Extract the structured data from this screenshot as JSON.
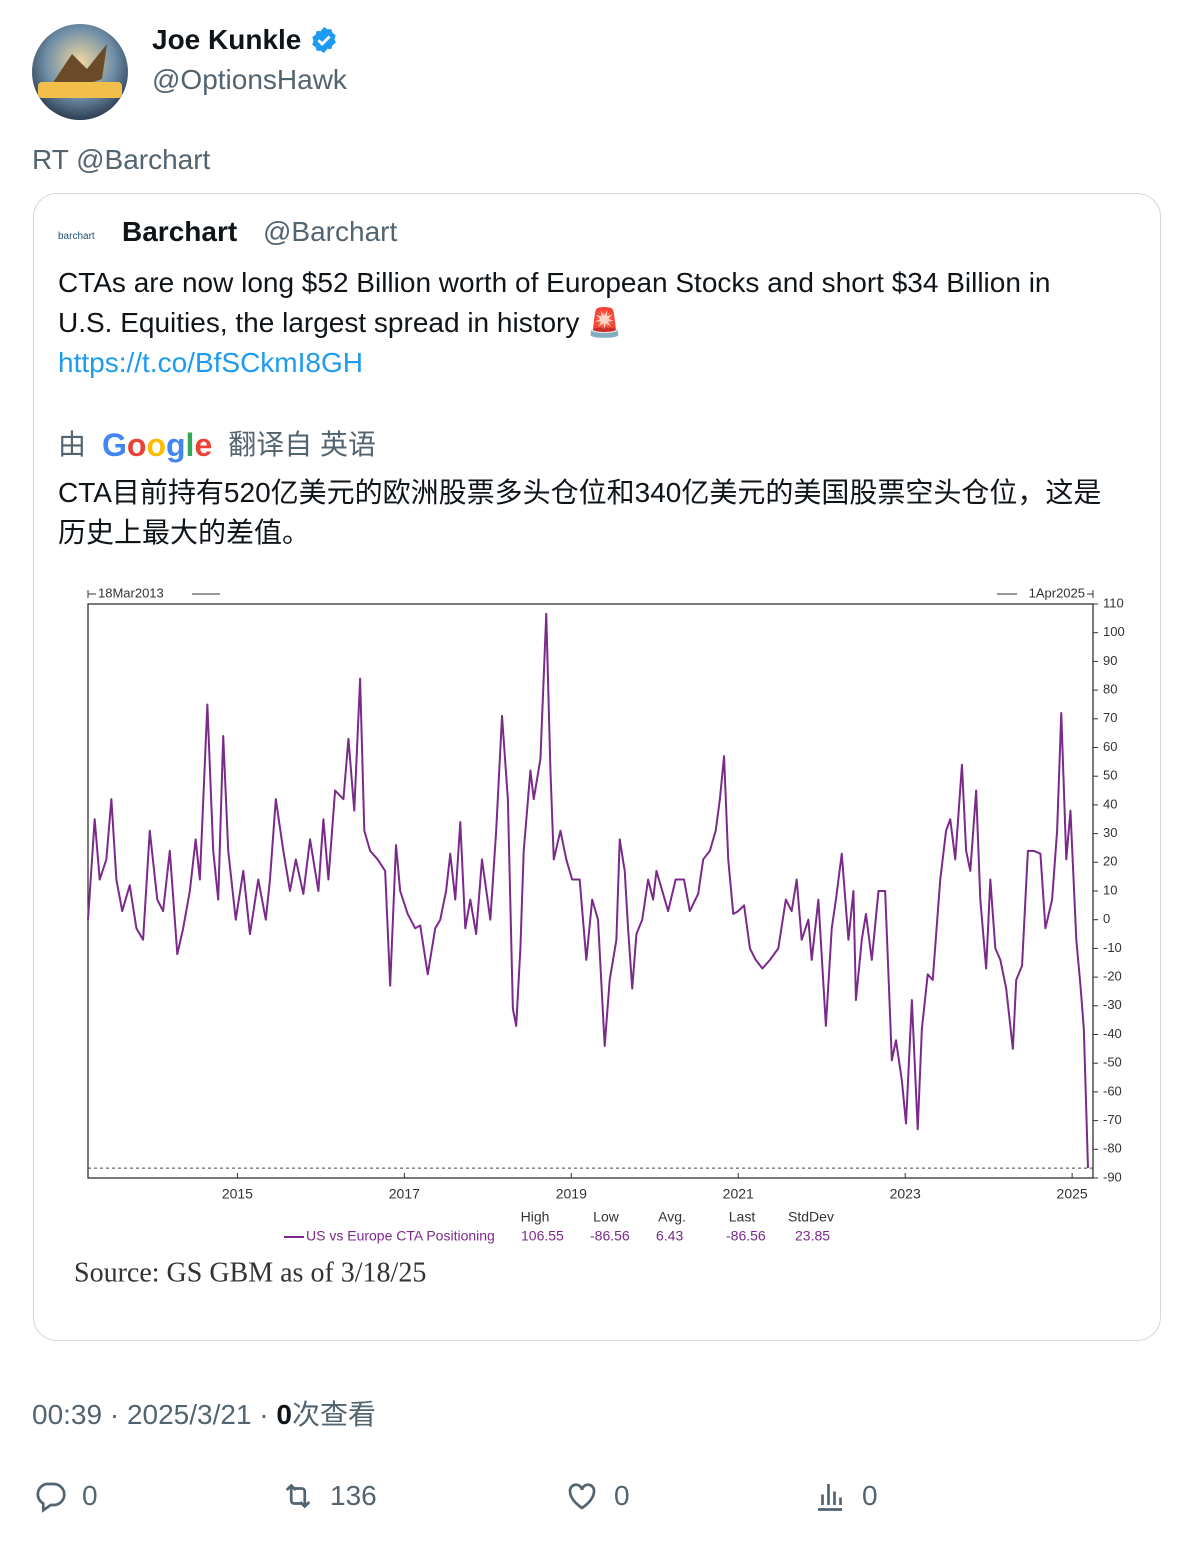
{
  "author": {
    "name": "Joe Kunkle",
    "handle": "@OptionsHawk"
  },
  "retweet_label": "RT @Barchart",
  "quoted": {
    "logo_text": "barchart",
    "name": "Barchart",
    "handle": "@Barchart",
    "text": "CTAs are now long $52 Billion worth of European Stocks and short $34 Billion in U.S. Equities, the largest spread in history 🚨",
    "link": "https://t.co/BfSCkmI8GH",
    "translation_prefix": "由",
    "translation_brand": "Google",
    "translation_suffix": "翻译自 英语",
    "translated_text": "CTA目前持有520亿美元的欧洲股票多头仓位和340亿美元的美国股票空头仓位，这是历史上最大的差值。",
    "chart_data": {
      "type": "line",
      "start_label": "18Mar2013",
      "end_label": "1Apr2025",
      "x": [
        2013.21,
        2013.29,
        2013.35,
        2013.43,
        2013.49,
        2013.55,
        2013.62,
        2013.71,
        2013.79,
        2013.87,
        2013.95,
        2014.04,
        2014.11,
        2014.19,
        2014.28,
        2014.35,
        2014.43,
        2014.5,
        2014.55,
        2014.64,
        2014.71,
        2014.77,
        2014.83,
        2014.89,
        2014.98,
        2015.07,
        2015.15,
        2015.25,
        2015.34,
        2015.39,
        2015.46,
        2015.55,
        2015.63,
        2015.7,
        2015.79,
        2015.87,
        2015.97,
        2016.03,
        2016.09,
        2016.17,
        2016.27,
        2016.33,
        2016.4,
        2016.47,
        2016.52,
        2016.59,
        2016.68,
        2016.77,
        2016.83,
        2016.9,
        2016.95,
        2017.04,
        2017.13,
        2017.19,
        2017.28,
        2017.37,
        2017.43,
        2017.5,
        2017.55,
        2017.61,
        2017.67,
        2017.73,
        2017.79,
        2017.86,
        2017.93,
        2018.03,
        2018.1,
        2018.17,
        2018.24,
        2018.3,
        2018.34,
        2018.39,
        2018.43,
        2018.51,
        2018.55,
        2018.63,
        2018.7,
        2018.75,
        2018.79,
        2018.87,
        2018.94,
        2019.01,
        2019.1,
        2019.18,
        2019.25,
        2019.32,
        2019.4,
        2019.46,
        2019.54,
        2019.58,
        2019.64,
        2019.68,
        2019.73,
        2019.78,
        2019.85,
        2019.92,
        2019.98,
        2020.02,
        2020.09,
        2020.16,
        2020.25,
        2020.35,
        2020.42,
        2020.52,
        2020.58,
        2020.66,
        2020.73,
        2020.78,
        2020.83,
        2020.88,
        2020.94,
        2021.0,
        2021.07,
        2021.14,
        2021.21,
        2021.29,
        2021.38,
        2021.48,
        2021.57,
        2021.64,
        2021.7,
        2021.76,
        2021.84,
        2021.88,
        2021.96,
        2022.05,
        2022.12,
        2022.17,
        2022.24,
        2022.32,
        2022.38,
        2022.41,
        2022.48,
        2022.53,
        2022.6,
        2022.68,
        2022.76,
        2022.84,
        2022.89,
        2022.96,
        2023.01,
        2023.08,
        2023.15,
        2023.2,
        2023.27,
        2023.33,
        2023.42,
        2023.49,
        2023.54,
        2023.6,
        2023.68,
        2023.73,
        2023.78,
        2023.85,
        2023.9,
        2023.97,
        2024.02,
        2024.08,
        2024.14,
        2024.21,
        2024.29,
        2024.33,
        2024.4,
        2024.47,
        2024.54,
        2024.62,
        2024.68,
        2024.76,
        2024.82,
        2024.87,
        2024.93,
        2024.98,
        2025.05,
        2025.1,
        2025.14,
        2025.19
      ],
      "series": [
        {
          "name": "US vs Europe CTA Positioning",
          "color": "#7b2a8a",
          "values": [
            0,
            35,
            14,
            21,
            42,
            14,
            3,
            12,
            -3,
            -7,
            31,
            7,
            3,
            24,
            -12,
            -3,
            10,
            28,
            14,
            75,
            24,
            7,
            64,
            24,
            0,
            17,
            -5,
            14,
            0,
            14,
            42,
            24,
            10,
            21,
            9,
            28,
            10,
            35,
            14,
            45,
            42,
            63,
            38,
            84,
            31,
            24,
            21,
            17,
            -23,
            26,
            10,
            2,
            -3,
            -2,
            -19,
            -3,
            0,
            10,
            23,
            7,
            34,
            -3,
            7,
            -5,
            21,
            0,
            31,
            71,
            42,
            -31,
            -37,
            -10,
            24,
            52,
            42,
            56,
            106.55,
            52,
            21,
            31,
            21,
            14,
            14,
            -14,
            7,
            0,
            -44,
            -21,
            -7,
            28,
            17,
            -3,
            -24,
            -5,
            0,
            14,
            7,
            17,
            10,
            3,
            14,
            14,
            3,
            9,
            21,
            24,
            31,
            42,
            57,
            21,
            2,
            3,
            5,
            -10,
            -14,
            -17,
            -14,
            -10,
            7,
            3,
            14,
            -7,
            0,
            -14,
            7,
            -37,
            -3,
            7,
            23,
            -7,
            10,
            -28,
            -7,
            2,
            -14,
            10,
            10,
            -49,
            -42,
            -56,
            -71,
            -28,
            -73,
            -38,
            -19,
            -21,
            14,
            31,
            35,
            21,
            54,
            24,
            17,
            45,
            7,
            -17,
            14,
            -10,
            -14,
            -24,
            -45,
            -21,
            -16,
            24,
            24,
            23,
            -3,
            7,
            31,
            72,
            21,
            38,
            -7,
            -23,
            -38,
            -86.56
          ]
        }
      ],
      "xlim": [
        2013.21,
        2025.25
      ],
      "xticks": [
        2015,
        2017,
        2019,
        2021,
        2023,
        2025
      ],
      "ylim": [
        -90,
        110
      ],
      "yticks": [
        -90,
        -80,
        -70,
        -60,
        -50,
        -40,
        -30,
        -20,
        -10,
        0,
        10,
        20,
        30,
        40,
        50,
        60,
        70,
        80,
        90,
        100,
        110
      ],
      "stats": [
        {
          "label": "High",
          "value": 106.55
        },
        {
          "label": "Low",
          "value": -86.56
        },
        {
          "label": "Avg.",
          "value": 6.43
        },
        {
          "label": "Last",
          "value": -86.56
        },
        {
          "label": "StdDev",
          "value": 23.85
        }
      ]
    },
    "source": "Source: GS GBM as of 3/18/25"
  },
  "timestamp": "00:39 · 2025/3/21 · ",
  "views_count": 0,
  "views_label": "次查看",
  "actions": {
    "replies": 0,
    "retweets": 136,
    "likes": 0,
    "views": 0
  }
}
